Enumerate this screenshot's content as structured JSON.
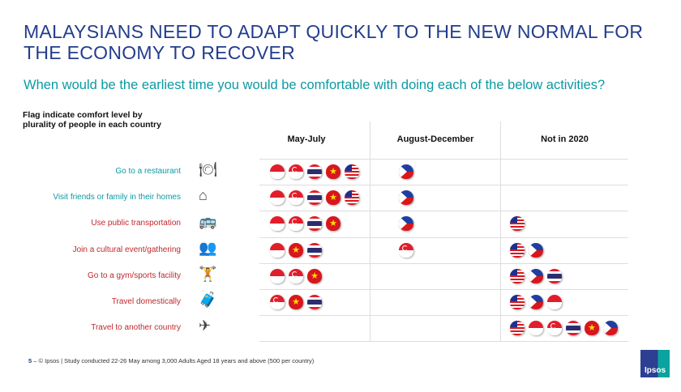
{
  "title": "MALAYSIANS NEED TO ADAPT QUICKLY TO THE NEW NORMAL FOR THE ECONOMY TO RECOVER",
  "subtitle": "When would be the earliest time you would be comfortable with doing each of the below activities?",
  "note": "Flag indicate comfort level by plurality of people in each country",
  "columns": [
    "May-July",
    "August-December",
    "Not in 2020"
  ],
  "colors": {
    "title": "#233d8c",
    "teal": "#0b9aa3",
    "red": "#c0282d"
  },
  "countries": {
    "ID": "Indonesia",
    "SG": "Singapore",
    "TH": "Thailand",
    "VN": "Vietnam",
    "MY": "Malaysia",
    "PH": "Philippines"
  },
  "rows": [
    {
      "label": "Go to a restaurant",
      "color": "teal",
      "icon": "restaurant-icon",
      "may_july": [
        "ID",
        "SG",
        "TH",
        "VN",
        "MY"
      ],
      "aug_dec": [
        "PH"
      ],
      "not_2020": []
    },
    {
      "label": "Visit friends or family in their homes",
      "color": "teal",
      "icon": "home-visit-icon",
      "may_july": [
        "ID",
        "SG",
        "TH",
        "VN",
        "MY"
      ],
      "aug_dec": [
        "PH"
      ],
      "not_2020": []
    },
    {
      "label": "Use public transportation",
      "color": "red",
      "icon": "bus-icon",
      "may_july": [
        "ID",
        "SG",
        "TH",
        "VN"
      ],
      "aug_dec": [
        "PH"
      ],
      "not_2020": [
        "MY"
      ]
    },
    {
      "label": "Join a cultural event/gathering",
      "color": "red",
      "icon": "crowd-icon",
      "may_july": [
        "ID",
        "VN",
        "TH"
      ],
      "aug_dec": [
        "SG"
      ],
      "not_2020": [
        "MY",
        "PH"
      ]
    },
    {
      "label": "Go to a gym/sports facility",
      "color": "red",
      "icon": "gym-icon",
      "may_july": [
        "ID",
        "SG",
        "VN"
      ],
      "aug_dec": [],
      "not_2020": [
        "MY",
        "PH",
        "TH"
      ]
    },
    {
      "label": "Travel domestically",
      "color": "red",
      "icon": "luggage-icon",
      "may_july": [
        "SG",
        "VN",
        "TH"
      ],
      "aug_dec": [],
      "not_2020": [
        "MY",
        "PH",
        "ID"
      ]
    },
    {
      "label": "Travel to another country",
      "color": "red",
      "icon": "plane-icon",
      "may_july": [],
      "aug_dec": [],
      "not_2020": [
        "MY",
        "ID",
        "SG",
        "TH",
        "VN",
        "PH"
      ]
    }
  ],
  "footer": {
    "page": "5",
    "text": "– © Ipsos | Study conducted 22-26 May among 3,000 Adults Aged 18 years and above (500 per country)"
  },
  "logo": "Ipsos"
}
